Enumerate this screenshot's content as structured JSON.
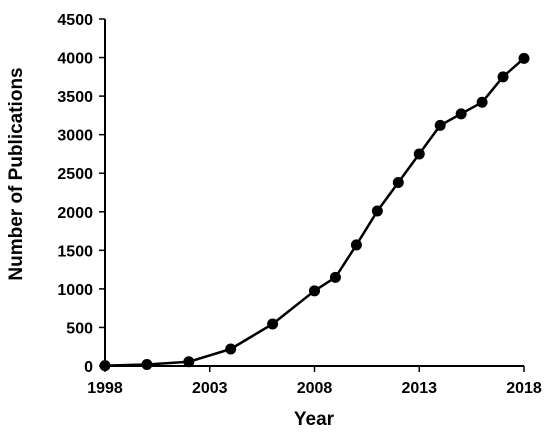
{
  "chart_data": {
    "type": "line",
    "xlabel": "Year",
    "ylabel": "Number of Publications",
    "xlim": [
      1998,
      2018
    ],
    "ylim": [
      0,
      4500
    ],
    "x_ticks": [
      "1998",
      "2003",
      "2008",
      "2013",
      "2018"
    ],
    "y_ticks": [
      "0",
      "500",
      "1000",
      "1500",
      "2000",
      "2500",
      "3000",
      "3500",
      "4000",
      "4500"
    ],
    "grid": false,
    "legend": "none",
    "series": [
      {
        "color": "#000000",
        "marker": "circle",
        "points": [
          {
            "x": 1998,
            "y": 5
          },
          {
            "x": 2000,
            "y": 20
          },
          {
            "x": 2002,
            "y": 55
          },
          {
            "x": 2004,
            "y": 220
          },
          {
            "x": 2006,
            "y": 545
          },
          {
            "x": 2008,
            "y": 975
          },
          {
            "x": 2009,
            "y": 1150
          },
          {
            "x": 2010,
            "y": 1570
          },
          {
            "x": 2011,
            "y": 2010
          },
          {
            "x": 2012,
            "y": 2380
          },
          {
            "x": 2013,
            "y": 2750
          },
          {
            "x": 2014,
            "y": 3120
          },
          {
            "x": 2015,
            "y": 3270
          },
          {
            "x": 2016,
            "y": 3420
          },
          {
            "x": 2017,
            "y": 3750
          },
          {
            "x": 2018,
            "y": 3990
          }
        ]
      }
    ]
  }
}
